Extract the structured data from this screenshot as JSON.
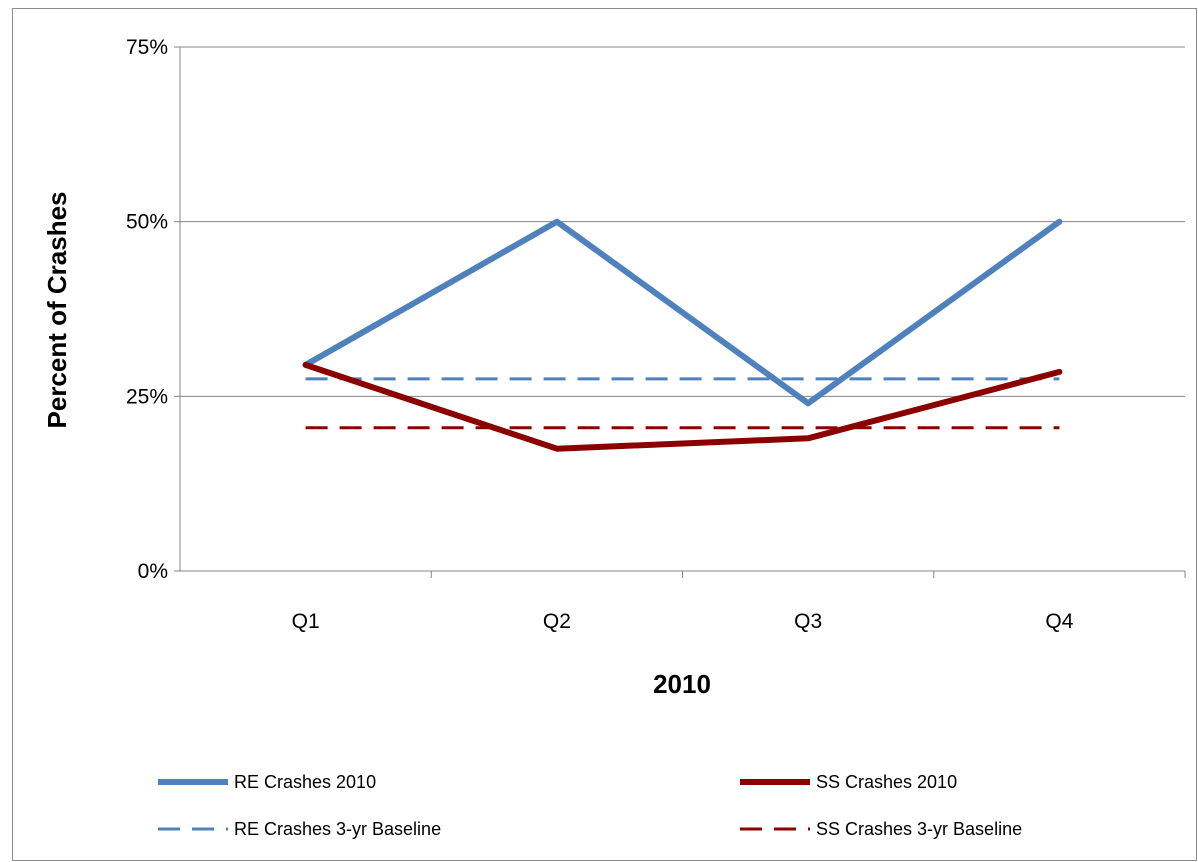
{
  "chart_data": {
    "type": "line",
    "title": "",
    "xlabel": "2010",
    "ylabel": "Percent of Crashes",
    "categories": [
      "Q1",
      "Q2",
      "Q3",
      "Q4"
    ],
    "ylim": [
      0,
      75
    ],
    "yticks": [
      0,
      25,
      50,
      75
    ],
    "ytick_labels": [
      "0%",
      "25%",
      "50%",
      "75%"
    ],
    "grid": true,
    "legend_position": "bottom",
    "series": [
      {
        "name": "RE Crashes 2010",
        "values": [
          29.5,
          50,
          24,
          50
        ],
        "color": "#4f81bd",
        "style": "solid"
      },
      {
        "name": "SS Crashes 2010",
        "values": [
          29.5,
          17.5,
          19,
          28.5
        ],
        "color": "#8b0000",
        "style": "solid"
      },
      {
        "name": "RE Crashes 3-yr Baseline",
        "values": [
          27.5,
          27.5,
          27.5,
          27.5
        ],
        "color": "#4f81bd",
        "style": "dashed"
      },
      {
        "name": "SS Crashes 3-yr Baseline",
        "values": [
          20.5,
          20.5,
          20.5,
          20.5
        ],
        "color": "#8b0000",
        "style": "dashed"
      }
    ]
  }
}
